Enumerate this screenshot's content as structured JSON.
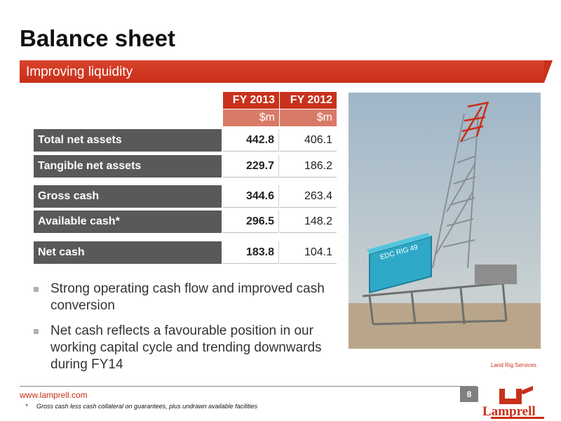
{
  "title": "Balance sheet",
  "banner": "Improving liquidity",
  "table": {
    "headers": [
      "FY 2013",
      "FY 2012"
    ],
    "units": [
      "$m",
      "$m"
    ],
    "rows": [
      {
        "label": "Total net assets",
        "fy2013": "442.8",
        "fy2012": "406.1"
      },
      {
        "label": "Tangible net assets",
        "fy2013": "229.7",
        "fy2012": "186.2"
      },
      {
        "label": "Gross cash",
        "fy2013": "344.6",
        "fy2012": "263.4"
      },
      {
        "label": "Available cash*",
        "fy2013": "296.5",
        "fy2012": "148.2"
      },
      {
        "label": "Net cash",
        "fy2013": "183.8",
        "fy2012": "104.1"
      }
    ]
  },
  "bullets": [
    "Strong operating cash flow and improved cash conversion",
    "Net cash reflects a favourable position in our working capital cycle and trending downwards during FY14"
  ],
  "photo": {
    "rig_label": "EDC RIG 49",
    "caption": "Land Rig Services"
  },
  "footer": {
    "url": "www.lamprell.com",
    "page": "8",
    "footnote_mark": "*",
    "footnote": "Gross cash less cash collateral on guarantees, plus undrawn available facilities",
    "logo_text": "Lamprell"
  },
  "colors": {
    "accent": "#c8301a",
    "label_bg": "#595959",
    "unit_bg": "#d97a67"
  }
}
